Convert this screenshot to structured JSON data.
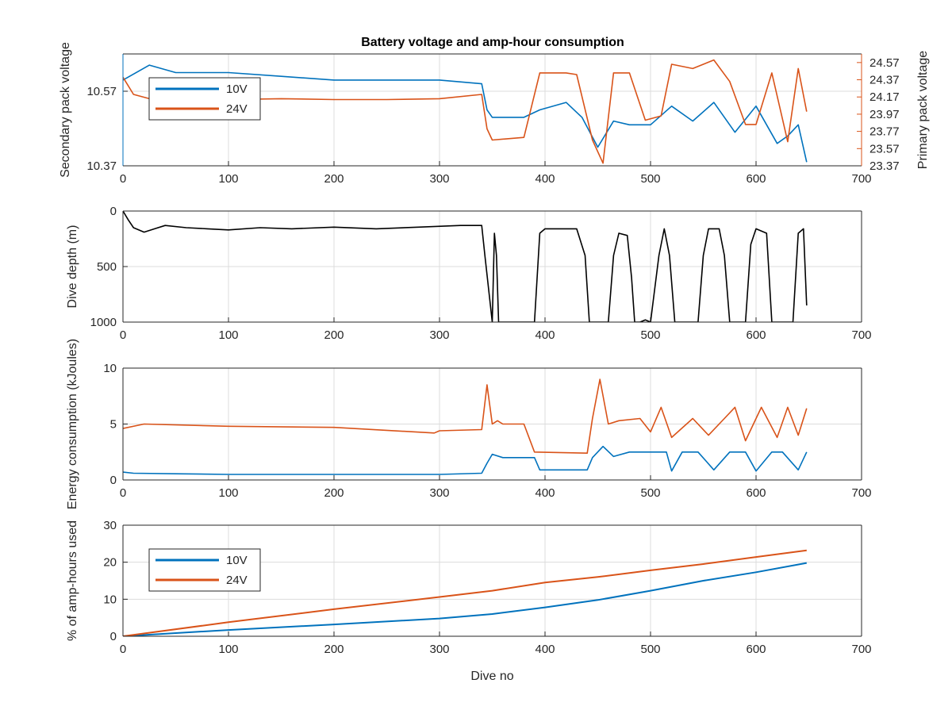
{
  "figure": {
    "title": "Battery voltage and amp-hour consumption",
    "colors": {
      "s10V": "#0072bd",
      "s24V": "#d95319",
      "depth": "#000000",
      "grid": "#dcdcdc",
      "axis": "#262626"
    }
  },
  "chart_data": [
    {
      "type": "line",
      "title": "Battery voltage and amp-hour consumption",
      "xlabel": "",
      "ylabel": "Secondary pack voltage",
      "ylabel_right": "Primary pack voltage",
      "xlim": [
        0,
        700
      ],
      "ylim": [
        10.37,
        10.67
      ],
      "ylim_right": [
        23.37,
        24.67
      ],
      "xticks": [
        "0",
        "100",
        "200",
        "300",
        "400",
        "500",
        "600",
        "700"
      ],
      "yticks": [
        "10.37",
        "10.57"
      ],
      "yticks_right": [
        "23.37",
        "23.57",
        "23.77",
        "23.97",
        "24.17",
        "24.37",
        "24.57"
      ],
      "grid": true,
      "legend": {
        "position": "top-left",
        "entries": [
          "10V",
          "24V"
        ]
      },
      "series": [
        {
          "name": "10V",
          "axis": "left",
          "x": [
            0,
            25,
            50,
            100,
            150,
            200,
            250,
            300,
            340,
            345,
            350,
            360,
            380,
            395,
            420,
            435,
            450,
            465,
            480,
            500,
            520,
            540,
            560,
            580,
            600,
            620,
            630,
            640,
            648
          ],
          "y": [
            10.6,
            10.64,
            10.62,
            10.62,
            10.61,
            10.6,
            10.6,
            10.6,
            10.59,
            10.52,
            10.5,
            10.5,
            10.5,
            10.52,
            10.54,
            10.5,
            10.42,
            10.49,
            10.48,
            10.48,
            10.53,
            10.49,
            10.54,
            10.46,
            10.53,
            10.43,
            10.45,
            10.48,
            10.38
          ]
        },
        {
          "name": "24V",
          "axis": "right",
          "x": [
            0,
            10,
            25,
            50,
            100,
            150,
            200,
            250,
            300,
            340,
            345,
            350,
            380,
            395,
            420,
            430,
            445,
            455,
            465,
            480,
            495,
            510,
            520,
            540,
            560,
            575,
            590,
            600,
            615,
            630,
            640,
            648
          ],
          "y": [
            24.4,
            24.2,
            24.15,
            24.14,
            24.14,
            24.15,
            24.14,
            24.14,
            24.15,
            24.2,
            23.8,
            23.67,
            23.7,
            24.45,
            24.45,
            24.43,
            23.67,
            23.4,
            24.45,
            24.45,
            23.9,
            23.95,
            24.55,
            24.5,
            24.6,
            24.35,
            23.85,
            23.85,
            24.45,
            23.65,
            24.5,
            24.0
          ]
        }
      ]
    },
    {
      "type": "line",
      "xlabel": "",
      "ylabel": "Dive depth (m)",
      "xlim": [
        0,
        700
      ],
      "ylim": [
        1000,
        0
      ],
      "xticks": [
        "0",
        "100",
        "200",
        "300",
        "400",
        "500",
        "600",
        "700"
      ],
      "yticks": [
        "0",
        "500",
        "1000"
      ],
      "grid": true,
      "series": [
        {
          "x": [
            0,
            5,
            10,
            20,
            30,
            40,
            60,
            80,
            100,
            130,
            160,
            200,
            240,
            280,
            320,
            340,
            343,
            350,
            352,
            354,
            356,
            380,
            390,
            395,
            400,
            430,
            438,
            442,
            460,
            465,
            470,
            478,
            482,
            485,
            490,
            495,
            500,
            508,
            513,
            518,
            523,
            528,
            545,
            550,
            555,
            565,
            570,
            575,
            590,
            595,
            600,
            610,
            615,
            620,
            635,
            640,
            645,
            648
          ],
          "y": [
            0,
            80,
            150,
            190,
            160,
            130,
            150,
            160,
            170,
            150,
            160,
            145,
            160,
            145,
            130,
            130,
            400,
            1000,
            200,
            400,
            1000,
            1000,
            1000,
            200,
            160,
            160,
            400,
            1000,
            1000,
            400,
            200,
            220,
            600,
            1000,
            1000,
            980,
            1000,
            400,
            160,
            400,
            1000,
            1000,
            1000,
            400,
            160,
            160,
            400,
            1000,
            1000,
            300,
            160,
            200,
            1000,
            1000,
            1000,
            200,
            160,
            850
          ]
        }
      ]
    },
    {
      "type": "line",
      "xlabel": "",
      "ylabel": "Energy consumption (kJoules)",
      "xlim": [
        0,
        700
      ],
      "ylim": [
        0,
        10
      ],
      "xticks": [
        "0",
        "100",
        "200",
        "300",
        "400",
        "500",
        "600",
        "700"
      ],
      "yticks": [
        "0",
        "5",
        "10"
      ],
      "grid": true,
      "series": [
        {
          "name": "24V",
          "x": [
            0,
            20,
            100,
            200,
            295,
            300,
            340,
            345,
            350,
            355,
            360,
            380,
            390,
            440,
            445,
            452,
            460,
            470,
            490,
            500,
            510,
            520,
            540,
            555,
            570,
            580,
            590,
            605,
            620,
            630,
            640,
            648
          ],
          "y": [
            4.6,
            5.0,
            4.8,
            4.7,
            4.2,
            4.4,
            4.5,
            8.5,
            5.0,
            5.3,
            5.0,
            5.0,
            2.5,
            2.4,
            5.5,
            9.0,
            5.0,
            5.3,
            5.5,
            4.3,
            6.5,
            3.8,
            5.5,
            4.0,
            5.5,
            6.5,
            3.5,
            6.5,
            3.8,
            6.5,
            4.0,
            6.4
          ]
        },
        {
          "name": "10V",
          "x": [
            0,
            10,
            50,
            100,
            200,
            300,
            340,
            345,
            350,
            360,
            390,
            395,
            440,
            445,
            455,
            465,
            480,
            500,
            515,
            520,
            530,
            545,
            560,
            575,
            590,
            600,
            615,
            625,
            640,
            648
          ],
          "y": [
            0.7,
            0.6,
            0.55,
            0.5,
            0.5,
            0.5,
            0.6,
            1.5,
            2.3,
            2.0,
            2.0,
            0.9,
            0.9,
            2.0,
            3.0,
            2.1,
            2.5,
            2.5,
            2.5,
            0.8,
            2.5,
            2.5,
            0.9,
            2.5,
            2.5,
            0.8,
            2.5,
            2.5,
            0.9,
            2.5
          ]
        }
      ]
    },
    {
      "type": "line",
      "xlabel": "Dive no",
      "ylabel": "% of amp-hours used",
      "xlim": [
        0,
        700
      ],
      "ylim": [
        0,
        30
      ],
      "xticks": [
        "0",
        "100",
        "200",
        "300",
        "400",
        "500",
        "600",
        "700"
      ],
      "yticks": [
        "0",
        "10",
        "20",
        "30"
      ],
      "grid": true,
      "legend": {
        "position": "top-left",
        "entries": [
          "10V",
          "24V"
        ]
      },
      "series": [
        {
          "name": "10V",
          "x": [
            0,
            100,
            200,
            300,
            350,
            400,
            450,
            500,
            550,
            600,
            648
          ],
          "y": [
            0,
            1.7,
            3.2,
            4.8,
            6.0,
            7.8,
            9.8,
            12.3,
            15.0,
            17.3,
            19.8
          ]
        },
        {
          "name": "24V",
          "x": [
            0,
            100,
            200,
            300,
            350,
            400,
            450,
            500,
            550,
            600,
            648
          ],
          "y": [
            0,
            3.8,
            7.3,
            10.6,
            12.3,
            14.5,
            16.0,
            17.8,
            19.5,
            21.4,
            23.2
          ]
        }
      ]
    }
  ]
}
